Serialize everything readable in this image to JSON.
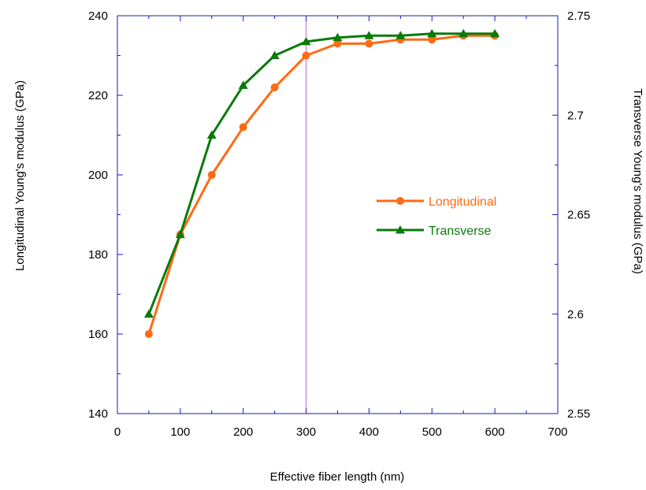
{
  "chart_data": {
    "type": "line",
    "title": "",
    "xlabel": "Effective fiber length (nm)",
    "ylabel": "Longitudinal Young's modulus (GPa)",
    "y2label": "Transverse Young's modulus (GPa)",
    "xlim": [
      0,
      700
    ],
    "ylim": [
      140,
      240
    ],
    "y2lim": [
      2.55,
      2.75
    ],
    "x_ticks": [
      0,
      100,
      200,
      300,
      400,
      500,
      600,
      700
    ],
    "y_ticks": [
      140,
      160,
      180,
      200,
      220,
      240
    ],
    "y2_ticks": [
      "2.55",
      "2.6",
      "2.65",
      "2.7",
      "2.75"
    ],
    "reference_line_x": 300,
    "grid": false,
    "legend_position": "center-right",
    "series": [
      {
        "name": "Longitudinal",
        "axis": "left",
        "color": "#FF6A13",
        "marker": "circle",
        "x": [
          50,
          100,
          150,
          200,
          250,
          300,
          350,
          400,
          450,
          500,
          550,
          600
        ],
        "y": [
          160,
          185,
          200,
          212,
          222,
          230,
          233,
          233,
          234,
          234,
          235,
          235
        ]
      },
      {
        "name": "Transverse",
        "axis": "right",
        "color": "#0A7A0A",
        "marker": "triangle",
        "x": [
          50,
          100,
          150,
          200,
          250,
          300,
          350,
          400,
          450,
          500,
          550,
          600
        ],
        "y": [
          2.6,
          2.64,
          2.69,
          2.715,
          2.73,
          2.737,
          2.739,
          2.74,
          2.74,
          2.741,
          2.741,
          2.741
        ]
      }
    ],
    "colors": {
      "axis": "#1A1AB8",
      "reference_line": "#CC66CC"
    }
  }
}
